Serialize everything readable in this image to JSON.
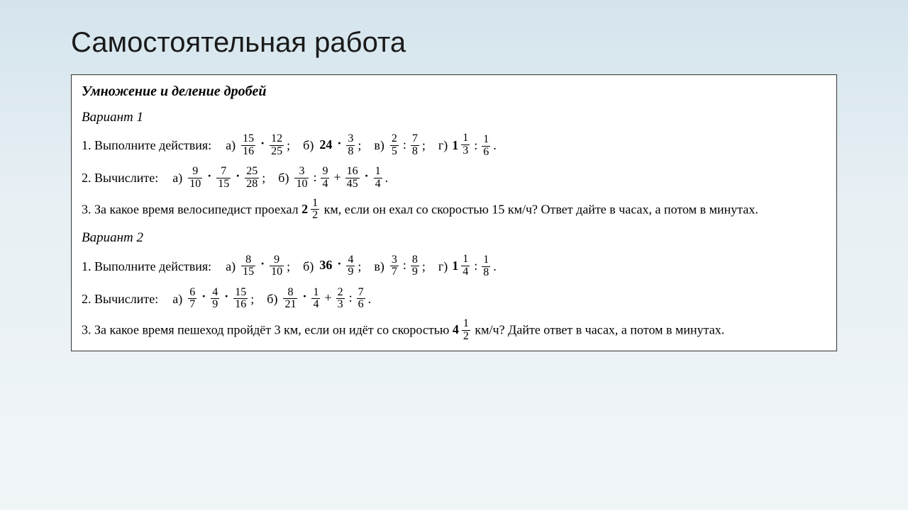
{
  "colors": {
    "bg_top": "#d4e4ed",
    "bg_bot": "#f0f5f8",
    "border": "#333333",
    "text": "#000000"
  },
  "fonts": {
    "title_family": "Arial",
    "body_family": "Georgia",
    "title_size": 40,
    "body_size": 18
  },
  "title": "Самостоятельная работа",
  "box": {
    "heading": "Умножение и деление дробей",
    "variants": [
      {
        "label": "Вариант 1",
        "p1": {
          "lead": "1. Выполните действия:",
          "items": [
            {
              "l": "а)",
              "expr": [
                {
                  "t": "frac",
                  "n": "15",
                  "d": "16"
                },
                {
                  "t": "dot"
                },
                {
                  "t": "frac",
                  "n": "12",
                  "d": "25"
                }
              ]
            },
            {
              "l": "б)",
              "expr": [
                {
                  "t": "num",
                  "v": "24"
                },
                {
                  "t": "dot"
                },
                {
                  "t": "frac",
                  "n": "3",
                  "d": "8"
                }
              ]
            },
            {
              "l": "в)",
              "expr": [
                {
                  "t": "frac",
                  "n": "2",
                  "d": "5"
                },
                {
                  "t": "op",
                  "v": ":"
                },
                {
                  "t": "frac",
                  "n": "7",
                  "d": "8"
                }
              ]
            },
            {
              "l": "г)",
              "expr": [
                {
                  "t": "mixed",
                  "w": "1",
                  "n": "1",
                  "d": "3"
                },
                {
                  "t": "op",
                  "v": ":"
                },
                {
                  "t": "frac",
                  "n": "1",
                  "d": "6"
                }
              ],
              "end": "."
            }
          ]
        },
        "p2": {
          "lead": "2. Вычислите:",
          "items": [
            {
              "l": "а)",
              "expr": [
                {
                  "t": "frac",
                  "n": "9",
                  "d": "10"
                },
                {
                  "t": "dot"
                },
                {
                  "t": "frac",
                  "n": "7",
                  "d": "15"
                },
                {
                  "t": "dot"
                },
                {
                  "t": "frac",
                  "n": "25",
                  "d": "28"
                }
              ]
            },
            {
              "l": "б)",
              "expr": [
                {
                  "t": "frac",
                  "n": "3",
                  "d": "10"
                },
                {
                  "t": "op",
                  "v": ":"
                },
                {
                  "t": "frac",
                  "n": "9",
                  "d": "4"
                },
                {
                  "t": "op",
                  "v": "+"
                },
                {
                  "t": "frac",
                  "n": "16",
                  "d": "45"
                },
                {
                  "t": "dot"
                },
                {
                  "t": "frac",
                  "n": "1",
                  "d": "4"
                }
              ],
              "end": "."
            }
          ]
        },
        "p3": {
          "pre": "3. За какое время велосипедист проехал ",
          "mix": {
            "w": "2",
            "n": "1",
            "d": "2"
          },
          "mid": " км, если он ехал со скоростью 15 км/ч? Ответ дайте в часах, а потом в минутах."
        }
      },
      {
        "label": "Вариант 2",
        "p1": {
          "lead": "1. Выполните действия:",
          "items": [
            {
              "l": "а)",
              "expr": [
                {
                  "t": "frac",
                  "n": "8",
                  "d": "15"
                },
                {
                  "t": "dot"
                },
                {
                  "t": "frac",
                  "n": "9",
                  "d": "10"
                }
              ]
            },
            {
              "l": "б)",
              "expr": [
                {
                  "t": "num",
                  "v": "36"
                },
                {
                  "t": "dot"
                },
                {
                  "t": "frac",
                  "n": "4",
                  "d": "9"
                }
              ]
            },
            {
              "l": "в)",
              "expr": [
                {
                  "t": "frac",
                  "n": "3",
                  "d": "7"
                },
                {
                  "t": "op",
                  "v": ":"
                },
                {
                  "t": "frac",
                  "n": "8",
                  "d": "9"
                }
              ]
            },
            {
              "l": "г)",
              "expr": [
                {
                  "t": "mixed",
                  "w": "1",
                  "n": "1",
                  "d": "4"
                },
                {
                  "t": "op",
                  "v": ":"
                },
                {
                  "t": "frac",
                  "n": "1",
                  "d": "8"
                }
              ],
              "end": "."
            }
          ]
        },
        "p2": {
          "lead": "2. Вычислите:",
          "items": [
            {
              "l": "а)",
              "expr": [
                {
                  "t": "frac",
                  "n": "6",
                  "d": "7"
                },
                {
                  "t": "dot"
                },
                {
                  "t": "frac",
                  "n": "4",
                  "d": "9"
                },
                {
                  "t": "dot"
                },
                {
                  "t": "frac",
                  "n": "15",
                  "d": "16"
                }
              ]
            },
            {
              "l": "б)",
              "expr": [
                {
                  "t": "frac",
                  "n": "8",
                  "d": "21"
                },
                {
                  "t": "dot"
                },
                {
                  "t": "frac",
                  "n": "1",
                  "d": "4"
                },
                {
                  "t": "op",
                  "v": "+"
                },
                {
                  "t": "frac",
                  "n": "2",
                  "d": "3"
                },
                {
                  "t": "op",
                  "v": ":"
                },
                {
                  "t": "frac",
                  "n": "7",
                  "d": "6"
                }
              ],
              "end": "."
            }
          ]
        },
        "p3": {
          "pre": "3. За какое время пешеход пройдёт 3 км, если он идёт со скоростью ",
          "mix": {
            "w": "4",
            "n": "1",
            "d": "2"
          },
          "mid": " км/ч? Дайте ответ в часах, а потом в минутах."
        }
      }
    ]
  }
}
